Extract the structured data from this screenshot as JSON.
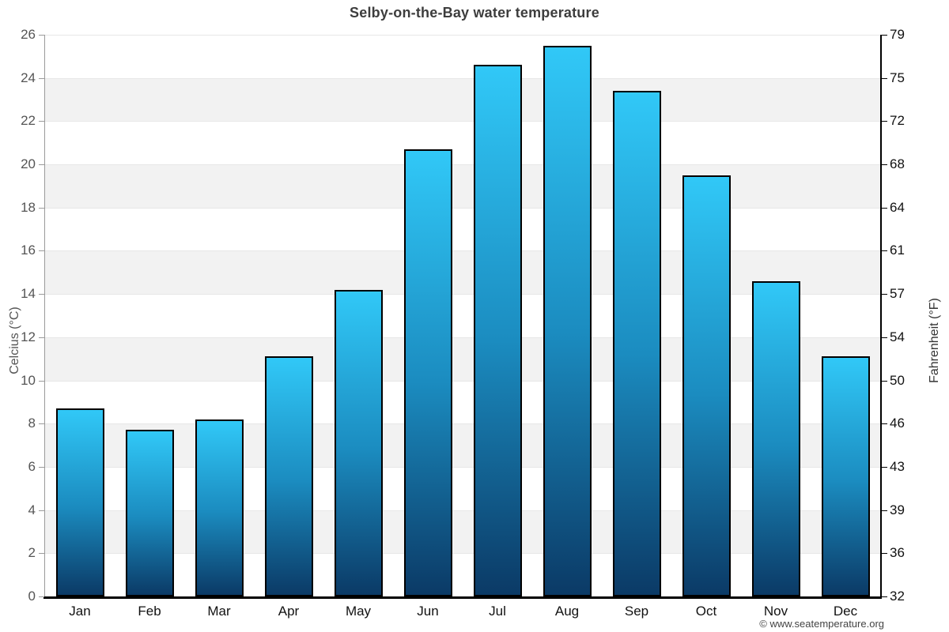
{
  "title": "Selby-on-the-Bay water temperature",
  "copyright": "© www.seatemperature.org",
  "axes": {
    "left_label": "Celcius (°C)",
    "right_label": "Fahrenheit (°F)"
  },
  "chart_data": {
    "type": "bar",
    "title": "Selby-on-the-Bay water temperature",
    "categories": [
      "Jan",
      "Feb",
      "Mar",
      "Apr",
      "May",
      "Jun",
      "Jul",
      "Aug",
      "Sep",
      "Oct",
      "Nov",
      "Dec"
    ],
    "values": [
      8.7,
      7.7,
      8.2,
      11.1,
      14.2,
      20.7,
      24.6,
      25.5,
      23.4,
      19.5,
      14.6,
      11.1
    ],
    "xlabel": "",
    "ylabel": "Celcius (°C)",
    "y2label": "Fahrenheit (°F)",
    "ylim": [
      0,
      26
    ],
    "celsius_ticks": [
      0,
      2,
      4,
      6,
      8,
      10,
      12,
      14,
      16,
      18,
      20,
      22,
      24,
      26
    ],
    "fahrenheit_tick_labels": [
      "32",
      "36",
      "39",
      "43",
      "46",
      "50",
      "54",
      "57",
      "61",
      "64",
      "68",
      "72",
      "75",
      "79"
    ],
    "grid": "alternating horizontal bands every 2°C, gridlines at each 2°C tick",
    "legend": "none",
    "colors": {
      "bar_gradient_top": "#31c8f7",
      "bar_gradient_mid": "#1b8cc0",
      "bar_gradient_bottom": "#0b3a66",
      "bar_border": "#000000",
      "band_gray": "#f2f2f2",
      "band_white": "#ffffff",
      "gridline": "#e7e7e7",
      "title_color": "#3d3d3d"
    }
  }
}
